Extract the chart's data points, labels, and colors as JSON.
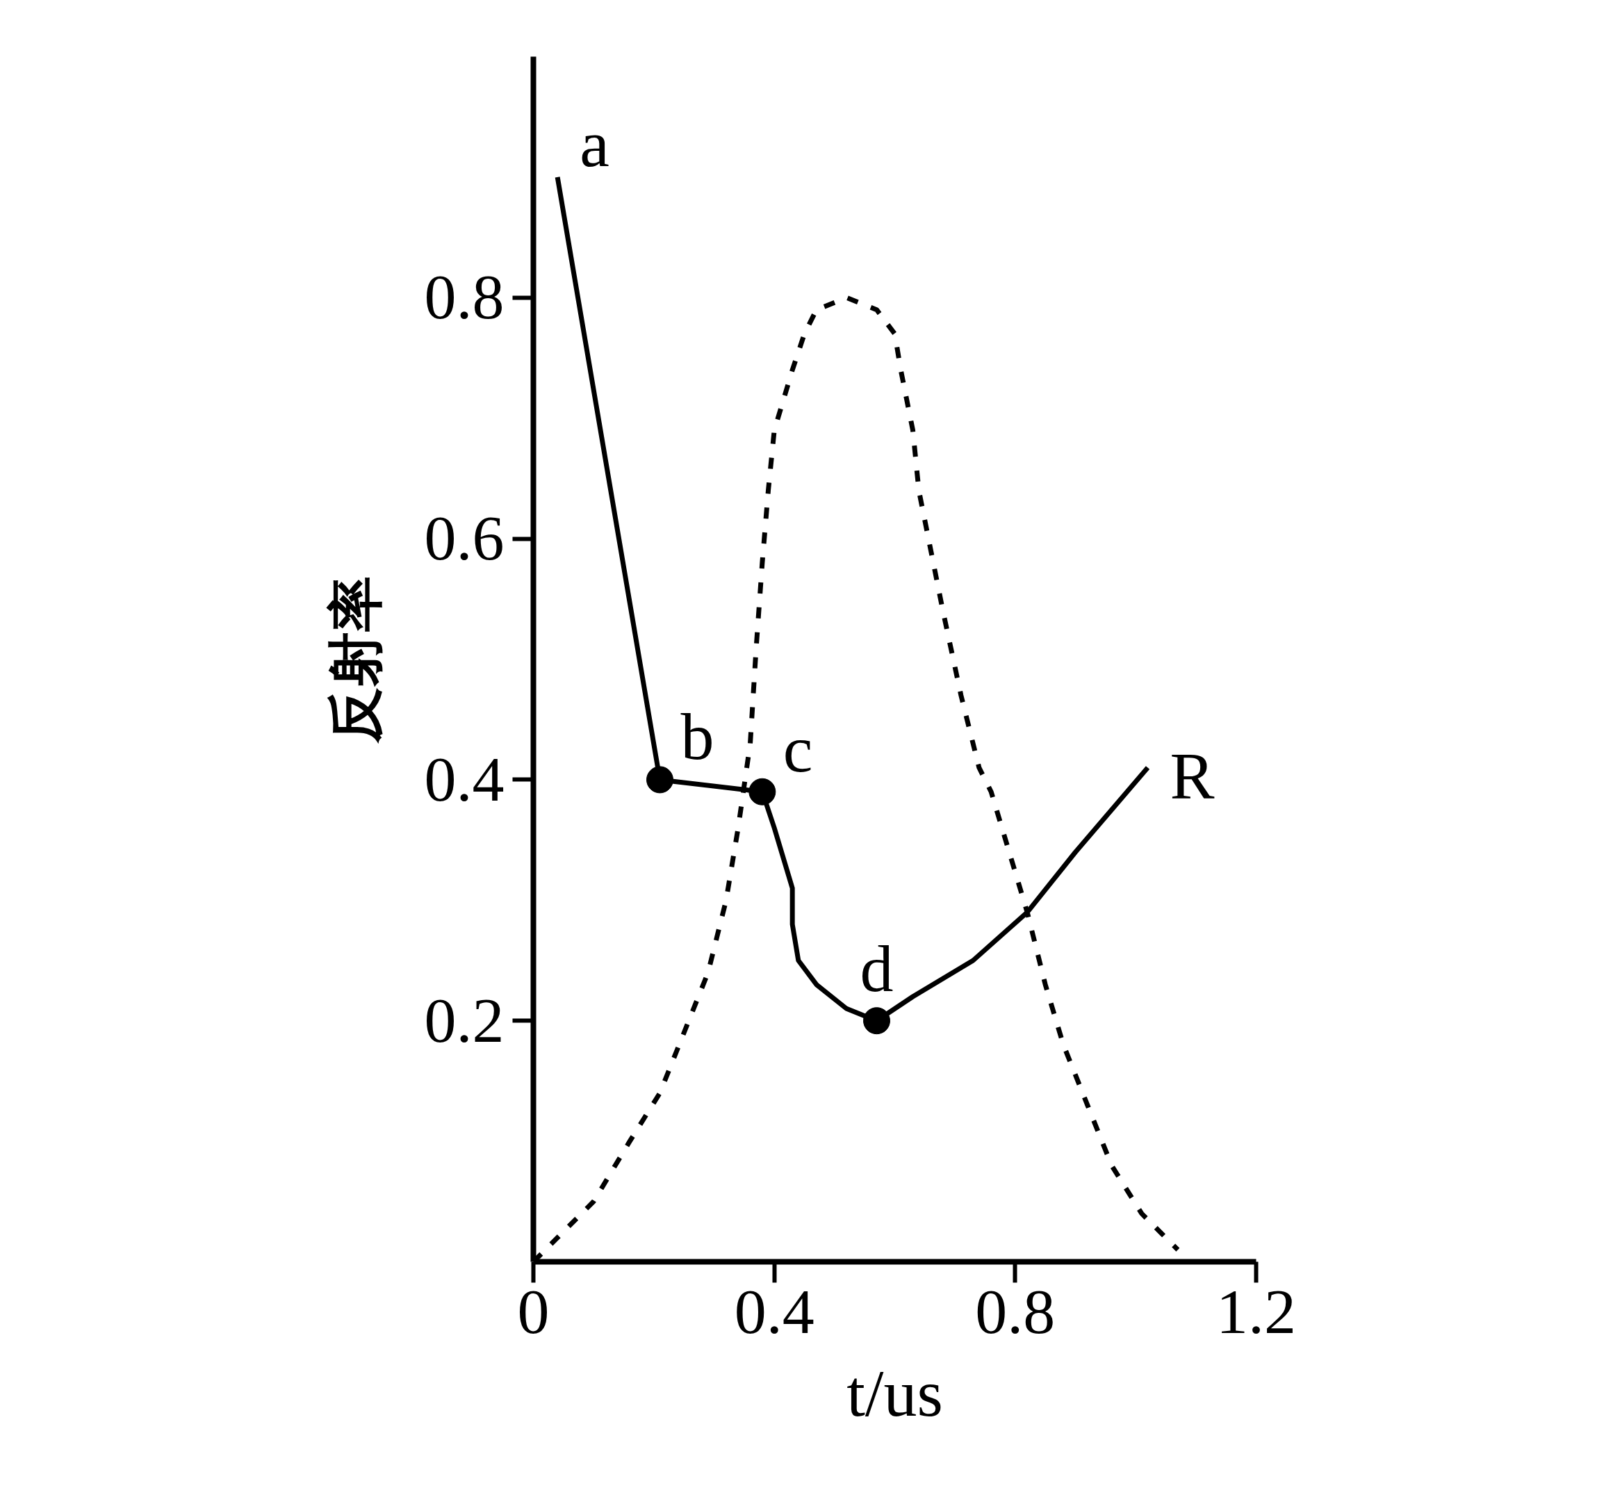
{
  "chart_data": {
    "type": "line",
    "xlabel": "t/us",
    "ylabel": "反射率",
    "xlim": [
      0,
      1.2
    ],
    "ylim": [
      0,
      1.0
    ],
    "xticks": [
      0,
      0.4,
      0.8,
      1.2
    ],
    "yticks": [
      0.2,
      0.4,
      0.6,
      0.8
    ],
    "series": [
      {
        "name": "R",
        "color": "#000000",
        "line_style": "solid",
        "x": [
          0.04,
          0.21,
          0.38,
          0.4,
          0.43,
          0.43,
          0.44,
          0.47,
          0.52,
          0.57,
          0.63,
          0.73,
          0.82,
          0.9,
          1.02
        ],
        "values": [
          0.9,
          0.4,
          0.39,
          0.36,
          0.31,
          0.28,
          0.25,
          0.23,
          0.21,
          0.2,
          0.22,
          0.25,
          0.29,
          0.34,
          0.41
        ]
      },
      {
        "color": "#000000",
        "line_style": "dotted",
        "x": [
          0.0,
          0.04,
          0.1,
          0.16,
          0.21,
          0.25,
          0.29,
          0.32,
          0.34,
          0.36,
          0.37,
          0.38,
          0.39,
          0.4,
          0.43,
          0.45,
          0.47,
          0.52,
          0.57,
          0.6,
          0.61,
          0.63,
          0.64,
          0.66,
          0.68,
          0.71,
          0.74,
          0.76,
          0.79,
          0.82,
          0.85,
          0.88,
          0.92,
          0.96,
          1.01,
          1.07
        ],
        "values": [
          0.0,
          0.02,
          0.05,
          0.1,
          0.14,
          0.19,
          0.24,
          0.3,
          0.36,
          0.43,
          0.51,
          0.58,
          0.64,
          0.69,
          0.74,
          0.77,
          0.79,
          0.8,
          0.79,
          0.77,
          0.74,
          0.69,
          0.64,
          0.59,
          0.54,
          0.47,
          0.41,
          0.39,
          0.34,
          0.29,
          0.23,
          0.18,
          0.13,
          0.08,
          0.04,
          0.01
        ]
      },
      {
        "type": "scatter",
        "color": "#000000",
        "marker": "circle",
        "x": [
          0.21,
          0.38,
          0.57
        ],
        "values": [
          0.4,
          0.39,
          0.2
        ]
      }
    ],
    "annotations": [
      {
        "text": "a",
        "x": 0.04,
        "y": 0.9
      },
      {
        "text": "b",
        "x": 0.21,
        "y": 0.4
      },
      {
        "text": "c",
        "x": 0.38,
        "y": 0.39
      },
      {
        "text": "d",
        "x": 0.57,
        "y": 0.2
      }
    ]
  }
}
